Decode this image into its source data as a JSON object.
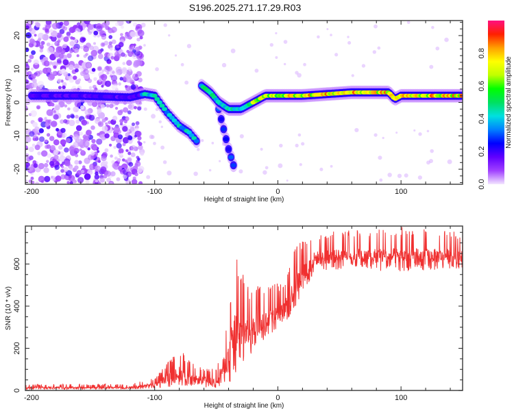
{
  "title": "S196.2025.271.17.29.R03",
  "chart_data": [
    {
      "type": "heatmap",
      "name": "spectrogram",
      "xlabel": "Height of straight line (km)",
      "ylabel": "Frequency (Hz)",
      "xlim": [
        -205,
        150
      ],
      "ylim": [
        -24.5,
        24.5
      ],
      "xticks": [
        -200,
        -100,
        0,
        100
      ],
      "yticks": [
        -20,
        -10,
        0,
        10,
        20
      ],
      "colorbar": {
        "label": "Normalized spectral amplitude",
        "range": [
          0.0,
          1.0
        ],
        "ticks": [
          "0.0",
          "0.2",
          "0.4",
          "0.6",
          "0.8"
        ],
        "colors": [
          "#f3e6ff",
          "#a040ff",
          "#6000ff",
          "#0000ff",
          "#0080ff",
          "#00e0e0",
          "#00e060",
          "#00ff00",
          "#c0ff00",
          "#ffff00",
          "#ffa000",
          "#ff2000",
          "#ff1080"
        ]
      },
      "tracks": [
        {
          "name": "main",
          "points": [
            [
              -200,
              2
            ],
            [
              -160,
              2
            ],
            [
              -120,
              1.5
            ],
            [
              -108,
              2.5
            ],
            [
              -100,
              2
            ],
            [
              -90,
              -3
            ],
            [
              -80,
              -7
            ],
            [
              -72,
              -9
            ],
            [
              -65,
              -12
            ]
          ]
        },
        {
          "name": "ascending",
          "points": [
            [
              -62,
              5
            ],
            [
              -55,
              3
            ],
            [
              -48,
              0
            ],
            [
              -40,
              -2
            ],
            [
              -30,
              -2
            ],
            [
              -20,
              0
            ],
            [
              -10,
              2
            ],
            [
              0,
              2
            ],
            [
              20,
              2
            ],
            [
              60,
              3
            ],
            [
              80,
              3
            ],
            [
              90,
              3
            ],
            [
              95,
              1
            ],
            [
              100,
              2
            ],
            [
              150,
              2
            ]
          ]
        },
        {
          "name": "branch",
          "points": [
            [
              -48,
              -2
            ],
            [
              -44,
              -8
            ],
            [
              -40,
              -14
            ],
            [
              -35,
              -20
            ]
          ]
        }
      ]
    },
    {
      "type": "line",
      "name": "snr",
      "xlabel": "Height of straight line (km)",
      "ylabel": "SNR (10 * v/v)",
      "xlim": [
        -205,
        150
      ],
      "ylim": [
        0,
        780
      ],
      "xticks": [
        -200,
        -100,
        0,
        100
      ],
      "yticks": [
        0,
        200,
        400,
        600
      ],
      "color": "#f03030",
      "envelope": [
        {
          "x": -205,
          "low": 5,
          "high": 30
        },
        {
          "x": -120,
          "low": 5,
          "high": 30
        },
        {
          "x": -100,
          "low": 10,
          "high": 60
        },
        {
          "x": -80,
          "low": 20,
          "high": 200
        },
        {
          "x": -70,
          "low": 10,
          "high": 130
        },
        {
          "x": -50,
          "low": 10,
          "high": 100
        },
        {
          "x": -40,
          "low": 30,
          "high": 400
        },
        {
          "x": -35,
          "low": 60,
          "high": 680
        },
        {
          "x": -25,
          "low": 150,
          "high": 500
        },
        {
          "x": -10,
          "low": 250,
          "high": 500
        },
        {
          "x": 5,
          "low": 300,
          "high": 520
        },
        {
          "x": 15,
          "low": 400,
          "high": 700
        },
        {
          "x": 30,
          "low": 560,
          "high": 750
        },
        {
          "x": 60,
          "low": 580,
          "high": 760
        },
        {
          "x": 95,
          "low": 560,
          "high": 780
        },
        {
          "x": 150,
          "low": 580,
          "high": 750
        }
      ]
    }
  ]
}
